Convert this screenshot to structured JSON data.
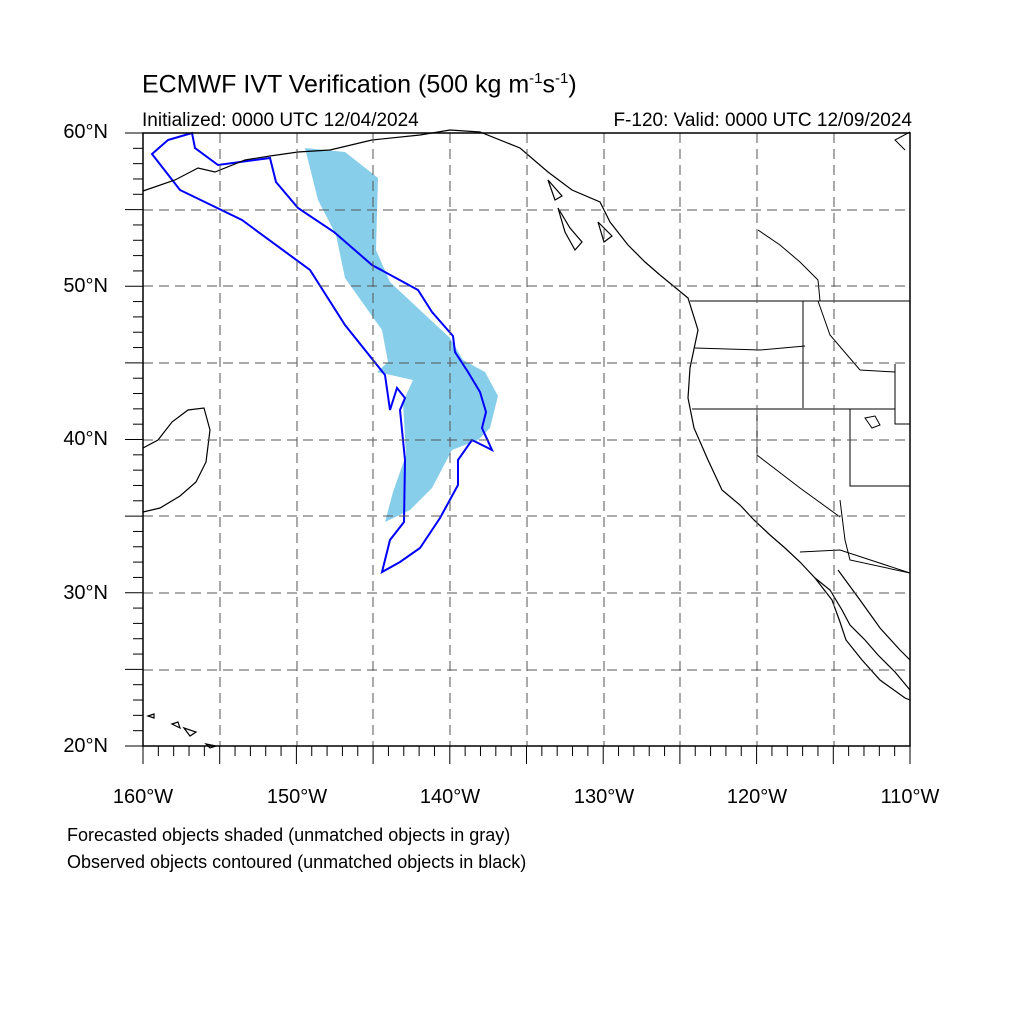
{
  "header": {
    "title_main": "ECMWF IVT Verification (500 kg m",
    "title_exp1": "-1",
    "title_mid": "s",
    "title_exp2": "-1",
    "title_end": ")",
    "initialized": "Initialized: 0000 UTC 12/04/2024",
    "valid": "F-120: Valid: 0000 UTC 12/09/2024"
  },
  "axes": {
    "lat_labels": [
      "60°N",
      "50°N",
      "40°N",
      "30°N",
      "20°N"
    ],
    "lon_labels": [
      "160°W",
      "150°W",
      "140°W",
      "130°W",
      "120°W",
      "110°W"
    ],
    "lat_range": [
      20,
      60
    ],
    "lon_range": [
      -160,
      -110
    ],
    "grid": true
  },
  "legend_notes": {
    "line1": "Forecasted objects shaded (unmatched objects in gray)",
    "line2": "Observed objects contoured (unmatched objects in black)"
  },
  "colors": {
    "forecast_fill": "#87ceeb",
    "observed_contour": "#0000ff",
    "coastline": "#000000",
    "grid": "#555555"
  }
}
